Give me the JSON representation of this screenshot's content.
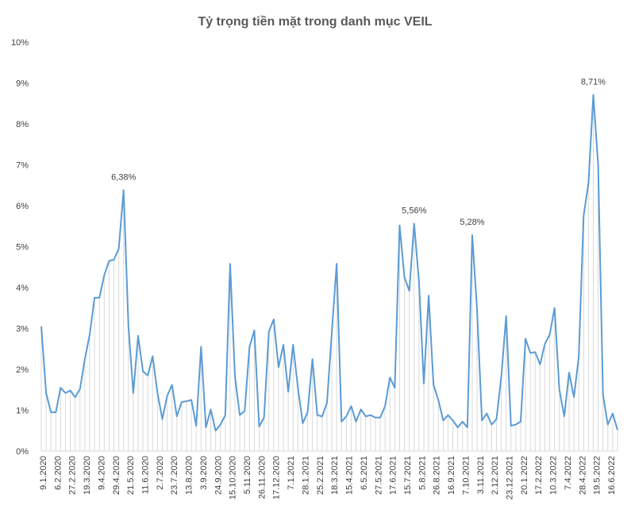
{
  "chart_data": {
    "type": "area",
    "title": "Tỷ trọng tiền mặt trong danh mục VEIL",
    "xlabel": "",
    "ylabel": "",
    "ylim": [
      0,
      10
    ],
    "y_ticks": [
      "0%",
      "1%",
      "2%",
      "3%",
      "4%",
      "5%",
      "6%",
      "7%",
      "8%",
      "9%",
      "10%"
    ],
    "x_tick_labels": [
      "9.1.2020",
      "6.2.2020",
      "27.2.2020",
      "19.3.2020",
      "9.4.2020",
      "29.4.2020",
      "21.5.2020",
      "11.6.2020",
      "2.7.2020",
      "23.7.2020",
      "13.8.2020",
      "3.9.2020",
      "24.9.2020",
      "15.10.2020",
      "5.11.2020",
      "26.11.2020",
      "17.12.2020",
      "7.1.2021",
      "28.1.2021",
      "25.2.2021",
      "18.3.2021",
      "15.4.2021",
      "6.5.2021",
      "27.5.2021",
      "17.6.2021",
      "15.7.2021",
      "5.8.2021",
      "26.8.2021",
      "16.9.2021",
      "7.10.2021",
      "3.11.2021",
      "2.12.2021",
      "23.12.2021",
      "20.1.2022",
      "17.2.2022",
      "10.3.2022",
      "7.4.2022",
      "28.4.2022",
      "19.5.2022",
      "16.6.2022"
    ],
    "grid": false,
    "legend": "none",
    "line_color": "#5B9BD5",
    "fill_color": "#D9D9D9",
    "series": [
      {
        "values": [
          3.05,
          1.42,
          0.95,
          0.95,
          1.55,
          1.42,
          1.48,
          1.32,
          1.52,
          2.25,
          2.85,
          3.75,
          3.75,
          4.3,
          4.65,
          4.68,
          4.95,
          6.38,
          3.05,
          1.42,
          2.82,
          1.95,
          1.85,
          2.32,
          1.42,
          0.78,
          1.35,
          1.62,
          0.85,
          1.2,
          1.22,
          1.25,
          0.62,
          2.55,
          0.58,
          1.02,
          0.5,
          0.65,
          0.88,
          4.58,
          1.82,
          0.88,
          0.98,
          2.55,
          2.95,
          0.6,
          0.82,
          2.92,
          3.22,
          2.05,
          2.6,
          1.45,
          2.6,
          1.55,
          0.68,
          0.95,
          2.25,
          0.88,
          0.85,
          1.18,
          2.9,
          4.58,
          0.72,
          0.85,
          1.1,
          0.72,
          1.02,
          0.85,
          0.88,
          0.82,
          0.82,
          1.1,
          1.8,
          1.55,
          5.52,
          4.25,
          3.92,
          5.56,
          4.15,
          1.65,
          3.8,
          1.62,
          1.25,
          0.75,
          0.88,
          0.75,
          0.58,
          0.72,
          0.58,
          5.28,
          3.45,
          0.75,
          0.92,
          0.65,
          0.78,
          1.82,
          3.3,
          0.62,
          0.65,
          0.72,
          2.75,
          2.4,
          2.42,
          2.12,
          2.62,
          2.85,
          3.5,
          1.5,
          0.85,
          1.92,
          1.32,
          2.3,
          5.75,
          6.55,
          8.71,
          7.0,
          1.38,
          0.65,
          0.92,
          0.52
        ]
      }
    ],
    "annotations": [
      {
        "index": 17,
        "text": "6,38%"
      },
      {
        "index": 77,
        "text": "5,56%"
      },
      {
        "index": 89,
        "text": "5,28%"
      },
      {
        "index": 114,
        "text": "8,71%"
      }
    ]
  }
}
